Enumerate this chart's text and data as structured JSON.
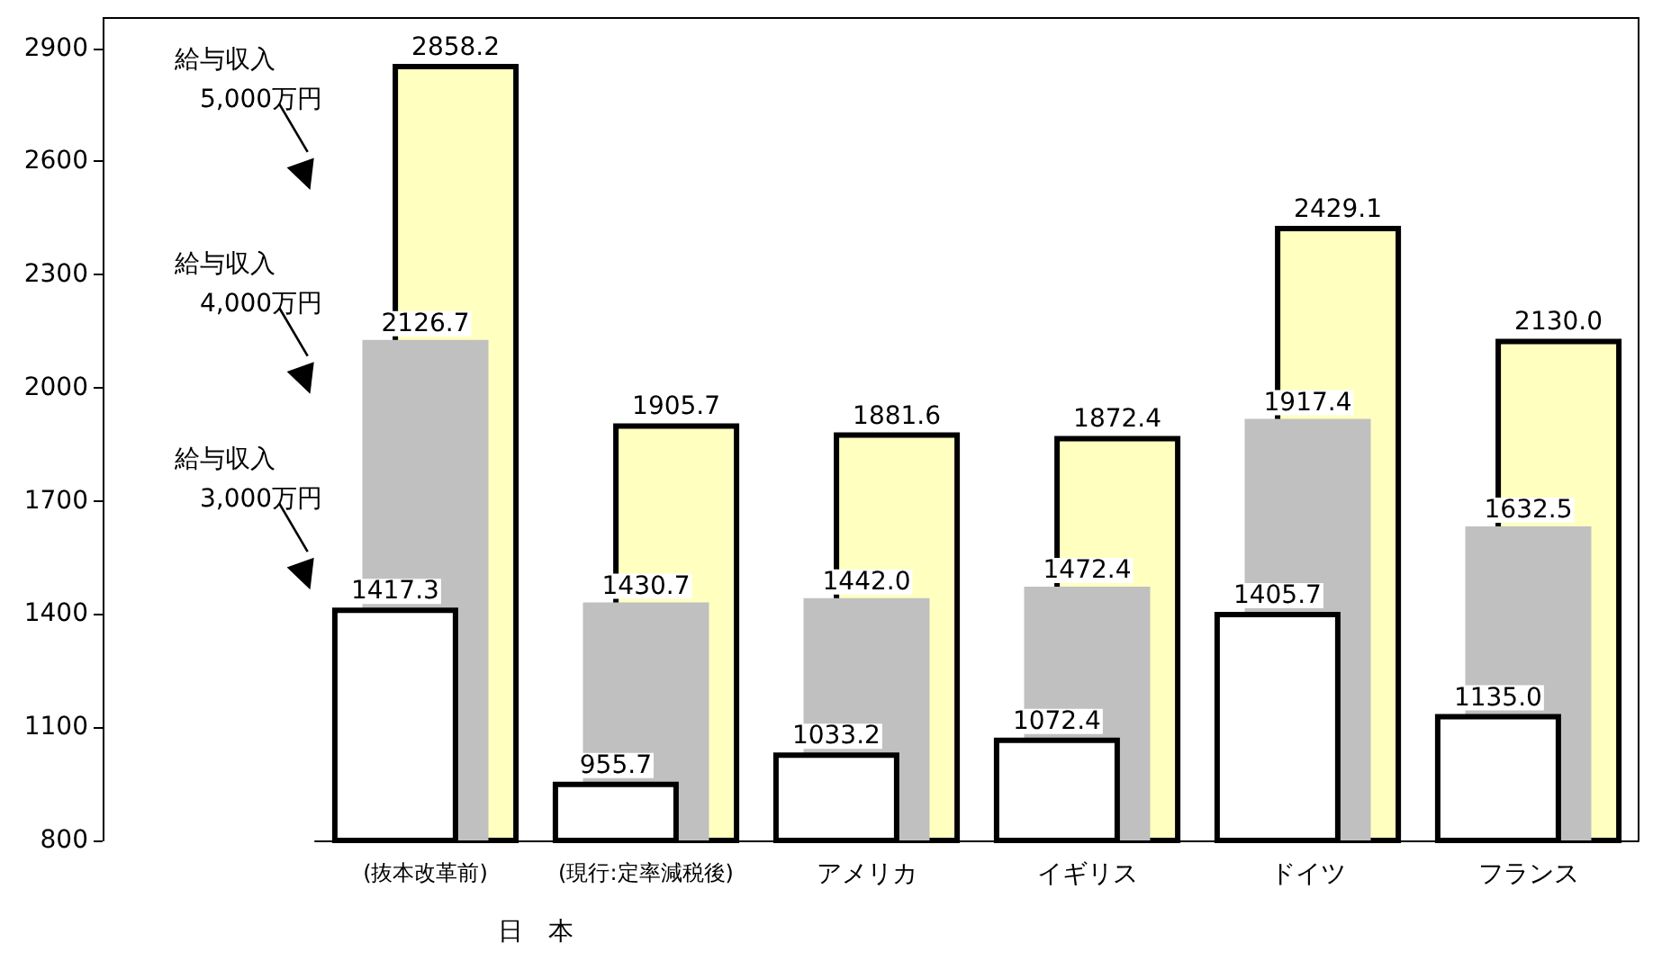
{
  "chart_data": {
    "type": "bar",
    "categories": [
      "(抜本改革前)",
      "(現行:定率減税後)",
      "アメリカ",
      "イギリス",
      "ドイツ",
      "フランス"
    ],
    "series": [
      {
        "color": "#ffffff",
        "values": [
          1417.3,
          955.7,
          1033.2,
          1072.4,
          1405.7,
          1135.0
        ],
        "value_labels": [
          "1417.3",
          "955.7",
          "1033.2",
          "1072.4",
          "1405.7",
          "1135.0"
        ]
      },
      {
        "color": "#c0c0c0",
        "values": [
          2126.7,
          1430.7,
          1442.0,
          1472.4,
          1917.4,
          1632.5
        ],
        "value_labels": [
          "2126.7",
          "1430.7",
          "1442.0",
          "1472.4",
          "1917.4",
          "1632.5"
        ]
      },
      {
        "color": "#ffffc0",
        "values": [
          2858.2,
          1905.7,
          1881.6,
          1872.4,
          2429.1,
          2130.0
        ],
        "value_labels": [
          "2858.2",
          "1905.7",
          "1881.6",
          "1872.4",
          "2429.1",
          "2130.0"
        ]
      }
    ],
    "ylim": [
      800,
      2980
    ],
    "yticks": [
      800,
      1100,
      1400,
      1700,
      2000,
      2300,
      2600,
      2900
    ],
    "annotations": [
      "給与収入\n5,000万円",
      "給与収入\n4,000万円",
      "給与収入\n3,000万円",
      "日　本"
    ],
    "grid": false
  }
}
